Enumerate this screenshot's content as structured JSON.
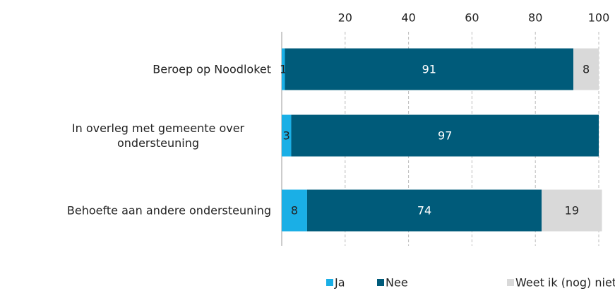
{
  "chart_data": {
    "type": "stacked-barh",
    "categories": [
      "Beroep op Noodloket",
      "In overleg met gemeente over ondersteuning",
      "Behoefte aan andere ondersteuning"
    ],
    "series": [
      {
        "name": "Ja",
        "color": "#1aafe6",
        "values": [
          1,
          3,
          8
        ]
      },
      {
        "name": "Nee",
        "color": "#005b7a",
        "values": [
          91,
          97,
          74
        ]
      },
      {
        "name": "Weet ik (nog) niet",
        "color": "#d9d9d9",
        "values": [
          8,
          null,
          19
        ]
      }
    ],
    "xlim": [
      0,
      100
    ],
    "xticks": [
      20,
      40,
      60,
      80,
      100
    ],
    "grid": true,
    "legend": "bottom"
  }
}
